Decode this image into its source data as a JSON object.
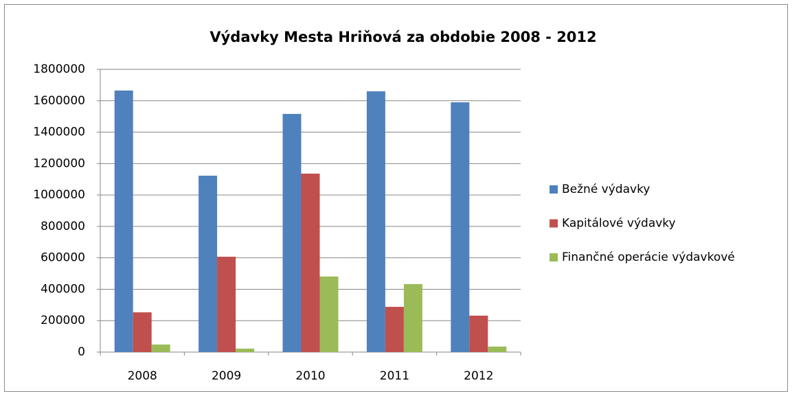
{
  "chart_data": {
    "type": "bar",
    "title": "Výdavky Mesta Hriňová za obdobie 2008 - 2012",
    "categories": [
      "2008",
      "2009",
      "2010",
      "2011",
      "2012"
    ],
    "series": [
      {
        "name": "Bežné výdavky",
        "color": "#4f81bd",
        "values": [
          1665000,
          1123000,
          1516000,
          1660000,
          1590000
        ]
      },
      {
        "name": "Kapitálové výdavky",
        "color": "#c0504d",
        "values": [
          253000,
          607000,
          1136000,
          288000,
          232000
        ]
      },
      {
        "name": "Finančné operácie výdavkové",
        "color": "#9bbb59",
        "values": [
          48000,
          22000,
          481000,
          433000,
          35000
        ]
      }
    ],
    "ylim": [
      0,
      1800000
    ],
    "yticks": [
      0,
      200000,
      400000,
      600000,
      800000,
      1000000,
      1200000,
      1400000,
      1600000,
      1800000
    ],
    "grid": true,
    "legend": "right"
  }
}
